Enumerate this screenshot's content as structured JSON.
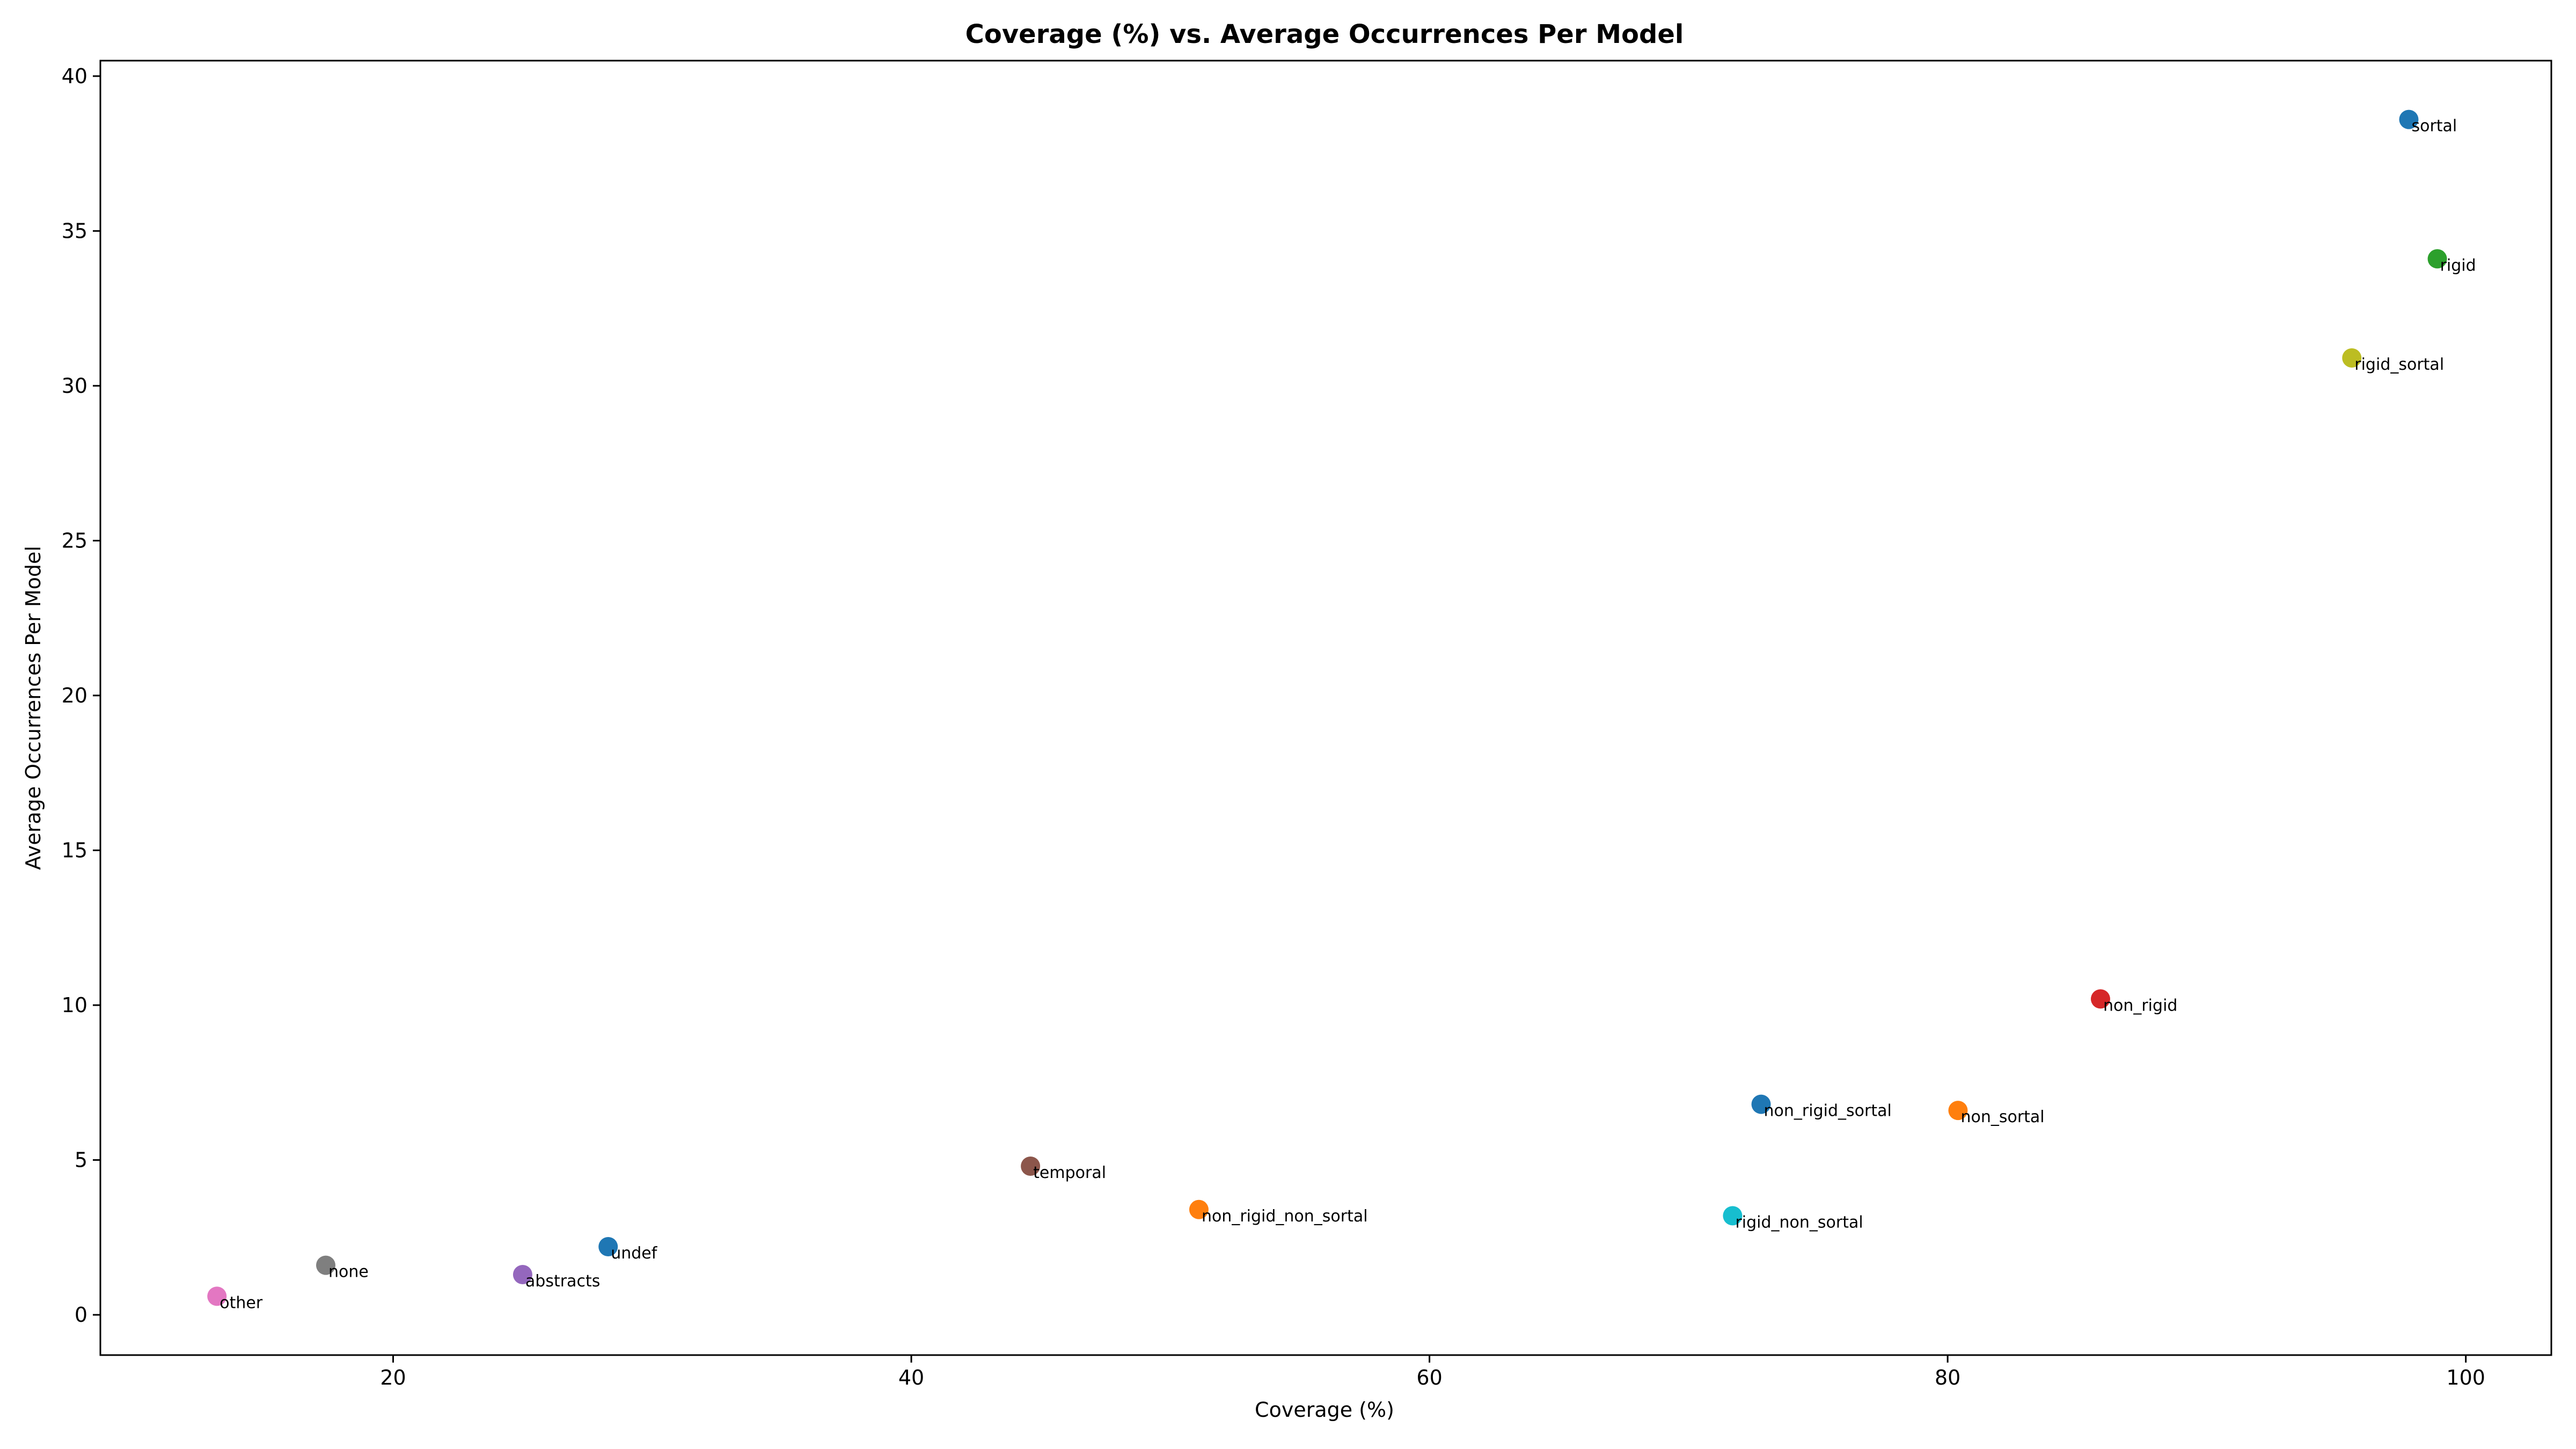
{
  "chart_data": {
    "type": "scatter",
    "title": "Coverage (%) vs. Average Occurrences Per Model",
    "xlabel": "Coverage (%)",
    "ylabel": "Average Occurrences Per Model",
    "xlim": [
      8.7,
      103.3
    ],
    "ylim": [
      -1.3,
      40.5
    ],
    "xticks": [
      20,
      40,
      60,
      80,
      100
    ],
    "yticks": [
      0,
      5,
      10,
      15,
      20,
      25,
      30,
      35,
      40
    ],
    "grid": false,
    "points": [
      {
        "label": "sortal",
        "x": 97.8,
        "y": 38.6,
        "color": "#1f77b4"
      },
      {
        "label": "rigid",
        "x": 98.9,
        "y": 34.1,
        "color": "#2ca02c"
      },
      {
        "label": "rigid_sortal",
        "x": 95.6,
        "y": 30.9,
        "color": "#bcbd22"
      },
      {
        "label": "non_rigid",
        "x": 85.9,
        "y": 10.2,
        "color": "#d62728"
      },
      {
        "label": "non_rigid_sortal",
        "x": 72.8,
        "y": 6.8,
        "color": "#1f77b4"
      },
      {
        "label": "non_sortal",
        "x": 80.4,
        "y": 6.6,
        "color": "#ff7f0e"
      },
      {
        "label": "temporal",
        "x": 44.6,
        "y": 4.8,
        "color": "#8c564b"
      },
      {
        "label": "non_rigid_non_sortal",
        "x": 51.1,
        "y": 3.4,
        "color": "#ff7f0e"
      },
      {
        "label": "rigid_non_sortal",
        "x": 71.7,
        "y": 3.2,
        "color": "#17becf"
      },
      {
        "label": "undef",
        "x": 28.3,
        "y": 2.2,
        "color": "#1f77b4"
      },
      {
        "label": "none",
        "x": 17.4,
        "y": 1.6,
        "color": "#7f7f7f"
      },
      {
        "label": "abstracts",
        "x": 25.0,
        "y": 1.3,
        "color": "#9467bd"
      },
      {
        "label": "other",
        "x": 13.2,
        "y": 0.6,
        "color": "#e377c2"
      }
    ]
  }
}
